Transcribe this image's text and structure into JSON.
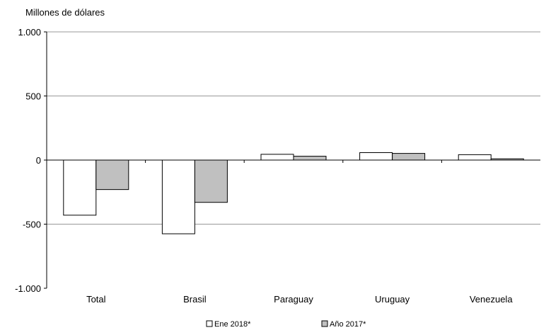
{
  "chart_data": {
    "type": "bar",
    "ylabel": "Millones  de dólares",
    "categories": [
      "Total",
      "Brasil",
      "Paraguay",
      "Uruguay",
      "Venezuela"
    ],
    "series": [
      {
        "name": "Ene 2018*",
        "values": [
          -430,
          -575,
          45,
          58,
          42
        ],
        "color": "#ffffff"
      },
      {
        "name": "Año 2017*",
        "values": [
          -230,
          -330,
          30,
          52,
          10
        ],
        "color": "#c0c0c0"
      }
    ],
    "ylim": [
      -1000,
      1000
    ],
    "yticks": [
      1000,
      500,
      0,
      -500,
      -1000
    ],
    "ytick_labels": [
      "1.000",
      "500",
      "0",
      "-500",
      "-1.000"
    ],
    "grid": true,
    "legend_position": "bottom-center"
  }
}
